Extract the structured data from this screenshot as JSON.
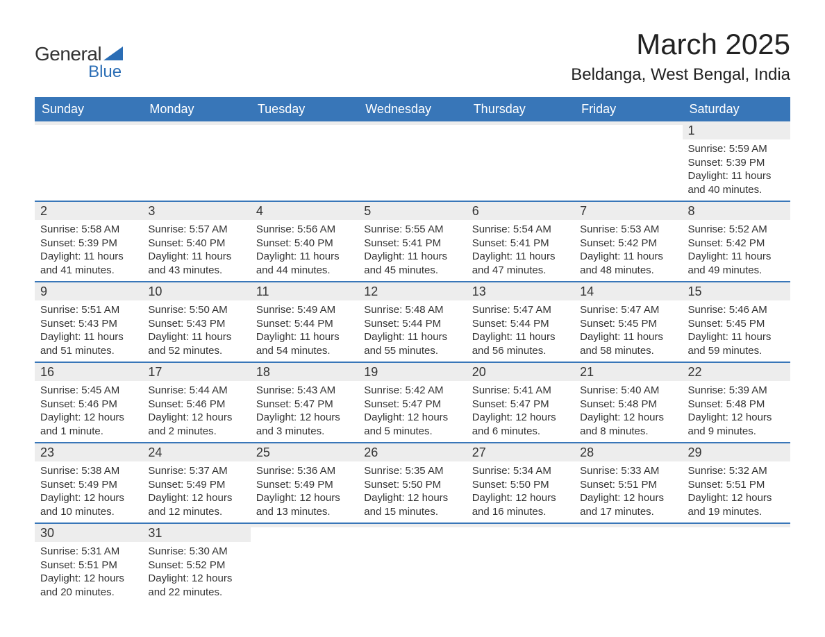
{
  "brand": {
    "text_general": "General",
    "text_blue": "Blue",
    "accent_color": "#2a6db5"
  },
  "title": {
    "month": "March 2025",
    "location": "Beldanga, West Bengal, India"
  },
  "colors": {
    "header_bg": "#3876b8",
    "header_text": "#ffffff",
    "daynum_bg": "#ededed",
    "row_border": "#3876b8",
    "text": "#333333",
    "page_bg": "#ffffff"
  },
  "daynames": [
    "Sunday",
    "Monday",
    "Tuesday",
    "Wednesday",
    "Thursday",
    "Friday",
    "Saturday"
  ],
  "weeks": [
    [
      {},
      {},
      {},
      {},
      {},
      {},
      {
        "n": "1",
        "sunrise": "Sunrise: 5:59 AM",
        "sunset": "Sunset: 5:39 PM",
        "daylight": "Daylight: 11 hours and 40 minutes."
      }
    ],
    [
      {
        "n": "2",
        "sunrise": "Sunrise: 5:58 AM",
        "sunset": "Sunset: 5:39 PM",
        "daylight": "Daylight: 11 hours and 41 minutes."
      },
      {
        "n": "3",
        "sunrise": "Sunrise: 5:57 AM",
        "sunset": "Sunset: 5:40 PM",
        "daylight": "Daylight: 11 hours and 43 minutes."
      },
      {
        "n": "4",
        "sunrise": "Sunrise: 5:56 AM",
        "sunset": "Sunset: 5:40 PM",
        "daylight": "Daylight: 11 hours and 44 minutes."
      },
      {
        "n": "5",
        "sunrise": "Sunrise: 5:55 AM",
        "sunset": "Sunset: 5:41 PM",
        "daylight": "Daylight: 11 hours and 45 minutes."
      },
      {
        "n": "6",
        "sunrise": "Sunrise: 5:54 AM",
        "sunset": "Sunset: 5:41 PM",
        "daylight": "Daylight: 11 hours and 47 minutes."
      },
      {
        "n": "7",
        "sunrise": "Sunrise: 5:53 AM",
        "sunset": "Sunset: 5:42 PM",
        "daylight": "Daylight: 11 hours and 48 minutes."
      },
      {
        "n": "8",
        "sunrise": "Sunrise: 5:52 AM",
        "sunset": "Sunset: 5:42 PM",
        "daylight": "Daylight: 11 hours and 49 minutes."
      }
    ],
    [
      {
        "n": "9",
        "sunrise": "Sunrise: 5:51 AM",
        "sunset": "Sunset: 5:43 PM",
        "daylight": "Daylight: 11 hours and 51 minutes."
      },
      {
        "n": "10",
        "sunrise": "Sunrise: 5:50 AM",
        "sunset": "Sunset: 5:43 PM",
        "daylight": "Daylight: 11 hours and 52 minutes."
      },
      {
        "n": "11",
        "sunrise": "Sunrise: 5:49 AM",
        "sunset": "Sunset: 5:44 PM",
        "daylight": "Daylight: 11 hours and 54 minutes."
      },
      {
        "n": "12",
        "sunrise": "Sunrise: 5:48 AM",
        "sunset": "Sunset: 5:44 PM",
        "daylight": "Daylight: 11 hours and 55 minutes."
      },
      {
        "n": "13",
        "sunrise": "Sunrise: 5:47 AM",
        "sunset": "Sunset: 5:44 PM",
        "daylight": "Daylight: 11 hours and 56 minutes."
      },
      {
        "n": "14",
        "sunrise": "Sunrise: 5:47 AM",
        "sunset": "Sunset: 5:45 PM",
        "daylight": "Daylight: 11 hours and 58 minutes."
      },
      {
        "n": "15",
        "sunrise": "Sunrise: 5:46 AM",
        "sunset": "Sunset: 5:45 PM",
        "daylight": "Daylight: 11 hours and 59 minutes."
      }
    ],
    [
      {
        "n": "16",
        "sunrise": "Sunrise: 5:45 AM",
        "sunset": "Sunset: 5:46 PM",
        "daylight": "Daylight: 12 hours and 1 minute."
      },
      {
        "n": "17",
        "sunrise": "Sunrise: 5:44 AM",
        "sunset": "Sunset: 5:46 PM",
        "daylight": "Daylight: 12 hours and 2 minutes."
      },
      {
        "n": "18",
        "sunrise": "Sunrise: 5:43 AM",
        "sunset": "Sunset: 5:47 PM",
        "daylight": "Daylight: 12 hours and 3 minutes."
      },
      {
        "n": "19",
        "sunrise": "Sunrise: 5:42 AM",
        "sunset": "Sunset: 5:47 PM",
        "daylight": "Daylight: 12 hours and 5 minutes."
      },
      {
        "n": "20",
        "sunrise": "Sunrise: 5:41 AM",
        "sunset": "Sunset: 5:47 PM",
        "daylight": "Daylight: 12 hours and 6 minutes."
      },
      {
        "n": "21",
        "sunrise": "Sunrise: 5:40 AM",
        "sunset": "Sunset: 5:48 PM",
        "daylight": "Daylight: 12 hours and 8 minutes."
      },
      {
        "n": "22",
        "sunrise": "Sunrise: 5:39 AM",
        "sunset": "Sunset: 5:48 PM",
        "daylight": "Daylight: 12 hours and 9 minutes."
      }
    ],
    [
      {
        "n": "23",
        "sunrise": "Sunrise: 5:38 AM",
        "sunset": "Sunset: 5:49 PM",
        "daylight": "Daylight: 12 hours and 10 minutes."
      },
      {
        "n": "24",
        "sunrise": "Sunrise: 5:37 AM",
        "sunset": "Sunset: 5:49 PM",
        "daylight": "Daylight: 12 hours and 12 minutes."
      },
      {
        "n": "25",
        "sunrise": "Sunrise: 5:36 AM",
        "sunset": "Sunset: 5:49 PM",
        "daylight": "Daylight: 12 hours and 13 minutes."
      },
      {
        "n": "26",
        "sunrise": "Sunrise: 5:35 AM",
        "sunset": "Sunset: 5:50 PM",
        "daylight": "Daylight: 12 hours and 15 minutes."
      },
      {
        "n": "27",
        "sunrise": "Sunrise: 5:34 AM",
        "sunset": "Sunset: 5:50 PM",
        "daylight": "Daylight: 12 hours and 16 minutes."
      },
      {
        "n": "28",
        "sunrise": "Sunrise: 5:33 AM",
        "sunset": "Sunset: 5:51 PM",
        "daylight": "Daylight: 12 hours and 17 minutes."
      },
      {
        "n": "29",
        "sunrise": "Sunrise: 5:32 AM",
        "sunset": "Sunset: 5:51 PM",
        "daylight": "Daylight: 12 hours and 19 minutes."
      }
    ],
    [
      {
        "n": "30",
        "sunrise": "Sunrise: 5:31 AM",
        "sunset": "Sunset: 5:51 PM",
        "daylight": "Daylight: 12 hours and 20 minutes."
      },
      {
        "n": "31",
        "sunrise": "Sunrise: 5:30 AM",
        "sunset": "Sunset: 5:52 PM",
        "daylight": "Daylight: 12 hours and 22 minutes."
      },
      {},
      {},
      {},
      {},
      {}
    ]
  ]
}
